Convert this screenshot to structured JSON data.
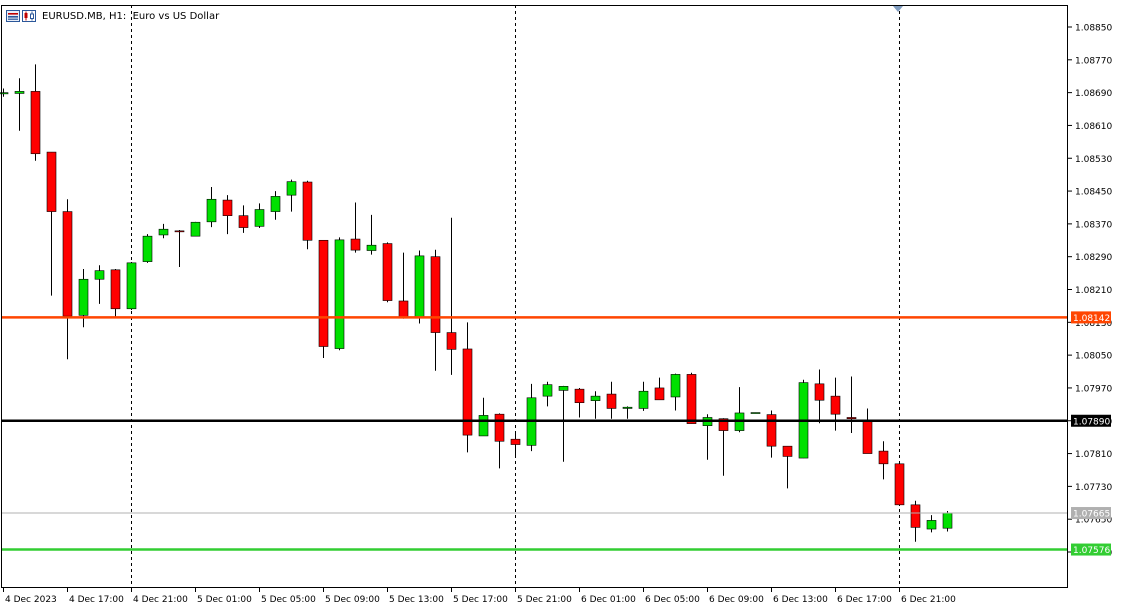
{
  "header": {
    "symbol": "EURUSD.MB",
    "timeframe": "H1",
    "description": "Euro vs US Dollar",
    "title_text": "EURUSD.MB, H1:  Euro vs US Dollar"
  },
  "colors": {
    "bull": "#00e000",
    "bear": "#ff0000",
    "line_orange": "#ff4500",
    "line_black": "#000000",
    "line_green": "#32cd32",
    "line_gray": "#b0b0b0",
    "grid": "#000000"
  },
  "chart_data": {
    "type": "candlestick",
    "title": "EURUSD.MB, H1:  Euro vs US Dollar",
    "ylim": [
      1.07565,
      1.08915
    ],
    "y_ticks": [
      "1.08850",
      "1.08770",
      "1.08690",
      "1.08610",
      "1.08530",
      "1.08450",
      "1.08370",
      "1.08290",
      "1.08210",
      "1.08130",
      "1.08050",
      "1.07970",
      "1.07890",
      "1.07810",
      "1.07730",
      "1.07650",
      "1.07570"
    ],
    "x_ticks": [
      "4 Dec 2023",
      "4 Dec 17:00",
      "4 Dec 21:00",
      "5 Dec 01:00",
      "5 Dec 05:00",
      "5 Dec 09:00",
      "5 Dec 13:00",
      "5 Dec 17:00",
      "5 Dec 21:00",
      "6 Dec 01:00",
      "6 Dec 05:00",
      "6 Dec 09:00",
      "6 Dec 13:00",
      "6 Dec 17:00",
      "6 Dec 21:00"
    ],
    "separators": [
      "4 Dec 21:00",
      "5 Dec 21:00",
      "6 Dec 21:00"
    ],
    "candles": [
      {
        "t": "4 Dec 13:00",
        "o": 1.08687,
        "h": 1.087,
        "l": 1.0868,
        "c": 1.0869
      },
      {
        "t": "4 Dec 14:00",
        "o": 1.08688,
        "h": 1.08725,
        "l": 1.08597,
        "c": 1.08693
      },
      {
        "t": "4 Dec 15:00",
        "o": 1.08693,
        "h": 1.08759,
        "l": 1.08524,
        "c": 1.08541
      },
      {
        "t": "4 Dec 16:00",
        "o": 1.08545,
        "h": 1.08545,
        "l": 1.08195,
        "c": 1.084
      },
      {
        "t": "4 Dec 17:00",
        "o": 1.084,
        "h": 1.0843,
        "l": 1.0804,
        "c": 1.08145
      },
      {
        "t": "4 Dec 18:00",
        "o": 1.08147,
        "h": 1.0826,
        "l": 1.08118,
        "c": 1.08235
      },
      {
        "t": "4 Dec 19:00",
        "o": 1.08235,
        "h": 1.08269,
        "l": 1.08175,
        "c": 1.08256
      },
      {
        "t": "4 Dec 20:00",
        "o": 1.08258,
        "h": 1.0826,
        "l": 1.08143,
        "c": 1.08163
      },
      {
        "t": "4 Dec 21:00",
        "o": 1.08163,
        "h": 1.08277,
        "l": 1.0816,
        "c": 1.08275
      },
      {
        "t": "4 Dec 22:00",
        "o": 1.08278,
        "h": 1.08345,
        "l": 1.08275,
        "c": 1.0834
      },
      {
        "t": "4 Dec 23:00",
        "o": 1.08343,
        "h": 1.0837,
        "l": 1.08335,
        "c": 1.08357
      },
      {
        "t": "5 Dec 00:00",
        "o": 1.08353,
        "h": 1.08355,
        "l": 1.08265,
        "c": 1.08351
      },
      {
        "t": "5 Dec 01:00",
        "o": 1.0834,
        "h": 1.08375,
        "l": 1.0834,
        "c": 1.08374
      },
      {
        "t": "5 Dec 02:00",
        "o": 1.08375,
        "h": 1.0846,
        "l": 1.08362,
        "c": 1.0843
      },
      {
        "t": "5 Dec 03:00",
        "o": 1.08428,
        "h": 1.0844,
        "l": 1.08345,
        "c": 1.0839
      },
      {
        "t": "5 Dec 04:00",
        "o": 1.0839,
        "h": 1.08415,
        "l": 1.08348,
        "c": 1.08361
      },
      {
        "t": "5 Dec 05:00",
        "o": 1.08364,
        "h": 1.0842,
        "l": 1.0836,
        "c": 1.08405
      },
      {
        "t": "5 Dec 06:00",
        "o": 1.084,
        "h": 1.0845,
        "l": 1.0838,
        "c": 1.08437
      },
      {
        "t": "5 Dec 07:00",
        "o": 1.0844,
        "h": 1.08478,
        "l": 1.084,
        "c": 1.08473
      },
      {
        "t": "5 Dec 08:00",
        "o": 1.08472,
        "h": 1.08475,
        "l": 1.08308,
        "c": 1.0833
      },
      {
        "t": "5 Dec 09:00",
        "o": 1.0833,
        "h": 1.0833,
        "l": 1.08043,
        "c": 1.08071
      },
      {
        "t": "5 Dec 10:00",
        "o": 1.08066,
        "h": 1.08337,
        "l": 1.08062,
        "c": 1.08331
      },
      {
        "t": "5 Dec 11:00",
        "o": 1.08333,
        "h": 1.08422,
        "l": 1.083,
        "c": 1.08306
      },
      {
        "t": "5 Dec 12:00",
        "o": 1.08305,
        "h": 1.08392,
        "l": 1.08295,
        "c": 1.08318
      },
      {
        "t": "5 Dec 13:00",
        "o": 1.08322,
        "h": 1.08325,
        "l": 1.08179,
        "c": 1.08183
      },
      {
        "t": "5 Dec 14:00",
        "o": 1.08182,
        "h": 1.083,
        "l": 1.08139,
        "c": 1.0814
      },
      {
        "t": "5 Dec 15:00",
        "o": 1.0814,
        "h": 1.08305,
        "l": 1.08127,
        "c": 1.08292
      },
      {
        "t": "5 Dec 16:00",
        "o": 1.0829,
        "h": 1.08307,
        "l": 1.08012,
        "c": 1.08105
      },
      {
        "t": "5 Dec 17:00",
        "o": 1.08105,
        "h": 1.08385,
        "l": 1.08002,
        "c": 1.08064
      },
      {
        "t": "5 Dec 18:00",
        "o": 1.08065,
        "h": 1.0813,
        "l": 1.07813,
        "c": 1.07855
      },
      {
        "t": "5 Dec 19:00",
        "o": 1.07853,
        "h": 1.07946,
        "l": 1.07853,
        "c": 1.07903
      },
      {
        "t": "5 Dec 20:00",
        "o": 1.07906,
        "h": 1.07908,
        "l": 1.07774,
        "c": 1.0784
      },
      {
        "t": "5 Dec 21:00",
        "o": 1.07845,
        "h": 1.0786,
        "l": 1.07806,
        "c": 1.07832
      },
      {
        "t": "5 Dec 22:00",
        "o": 1.0783,
        "h": 1.0798,
        "l": 1.07816,
        "c": 1.07946
      },
      {
        "t": "5 Dec 23:00",
        "o": 1.0795,
        "h": 1.07985,
        "l": 1.07925,
        "c": 1.07978
      },
      {
        "t": "6 Dec 00:00",
        "o": 1.07964,
        "h": 1.07975,
        "l": 1.0779,
        "c": 1.07974
      },
      {
        "t": "6 Dec 01:00",
        "o": 1.07967,
        "h": 1.0797,
        "l": 1.07898,
        "c": 1.07934
      },
      {
        "t": "6 Dec 02:00",
        "o": 1.07939,
        "h": 1.07962,
        "l": 1.07895,
        "c": 1.0795
      },
      {
        "t": "6 Dec 03:00",
        "o": 1.07955,
        "h": 1.07985,
        "l": 1.07895,
        "c": 1.0792
      },
      {
        "t": "6 Dec 04:00",
        "o": 1.0792,
        "h": 1.07925,
        "l": 1.07895,
        "c": 1.07923
      },
      {
        "t": "6 Dec 05:00",
        "o": 1.0792,
        "h": 1.07985,
        "l": 1.07914,
        "c": 1.07962
      },
      {
        "t": "6 Dec 06:00",
        "o": 1.0797,
        "h": 1.07995,
        "l": 1.0795,
        "c": 1.07941
      },
      {
        "t": "6 Dec 07:00",
        "o": 1.07948,
        "h": 1.08005,
        "l": 1.07915,
        "c": 1.08003
      },
      {
        "t": "6 Dec 08:00",
        "o": 1.08003,
        "h": 1.08007,
        "l": 1.07883,
        "c": 1.07883
      },
      {
        "t": "6 Dec 09:00",
        "o": 1.07878,
        "h": 1.07906,
        "l": 1.07795,
        "c": 1.07898
      },
      {
        "t": "6 Dec 10:00",
        "o": 1.07895,
        "h": 1.07896,
        "l": 1.07756,
        "c": 1.07866
      },
      {
        "t": "6 Dec 11:00",
        "o": 1.07866,
        "h": 1.07972,
        "l": 1.07862,
        "c": 1.07909
      },
      {
        "t": "6 Dec 12:00",
        "o": 1.0791,
        "h": 1.0791,
        "l": 1.07909,
        "c": 1.0791
      },
      {
        "t": "6 Dec 13:00",
        "o": 1.07905,
        "h": 1.07915,
        "l": 1.078,
        "c": 1.07828
      },
      {
        "t": "6 Dec 14:00",
        "o": 1.07828,
        "h": 1.07828,
        "l": 1.07725,
        "c": 1.07803
      },
      {
        "t": "6 Dec 15:00",
        "o": 1.07799,
        "h": 1.0799,
        "l": 1.07799,
        "c": 1.07983
      },
      {
        "t": "6 Dec 16:00",
        "o": 1.0798,
        "h": 1.08015,
        "l": 1.07884,
        "c": 1.0794
      },
      {
        "t": "6 Dec 17:00",
        "o": 1.0795,
        "h": 1.07995,
        "l": 1.07866,
        "c": 1.07906
      },
      {
        "t": "6 Dec 18:00",
        "o": 1.07898,
        "h": 1.07998,
        "l": 1.0786,
        "c": 1.07895
      },
      {
        "t": "6 Dec 19:00",
        "o": 1.0789,
        "h": 1.0792,
        "l": 1.07812,
        "c": 1.0781
      },
      {
        "t": "6 Dec 20:00",
        "o": 1.07816,
        "h": 1.0784,
        "l": 1.07747,
        "c": 1.07785
      },
      {
        "t": "6 Dec 21:00",
        "o": 1.07785,
        "h": 1.0779,
        "l": 1.07683,
        "c": 1.07685
      },
      {
        "t": "6 Dec 22:00",
        "o": 1.07685,
        "h": 1.07695,
        "l": 1.07595,
        "c": 1.0763
      },
      {
        "t": "6 Dec 23:00",
        "o": 1.07626,
        "h": 1.0766,
        "l": 1.07618,
        "c": 1.07647
      },
      {
        "t": "7 Dec 00:00",
        "o": 1.07628,
        "h": 1.0767,
        "l": 1.0762,
        "c": 1.07665
      }
    ],
    "hlines": [
      {
        "name": "orange-level",
        "price": 1.08142,
        "label": "1.08142",
        "color": "#ff4500",
        "label_text_color": "#ffffff"
      },
      {
        "name": "black-level",
        "price": 1.0789,
        "label": "1.07890",
        "color": "#000000",
        "label_text_color": "#ffffff"
      },
      {
        "name": "bid-level",
        "price": 1.07665,
        "label": "1.07665",
        "color": "#b0b0b0",
        "label_text_color": "#ffffff"
      },
      {
        "name": "green-level",
        "price": 1.07576,
        "label": "1.07576",
        "color": "#32cd32",
        "label_text_color": "#ffffff"
      }
    ]
  }
}
